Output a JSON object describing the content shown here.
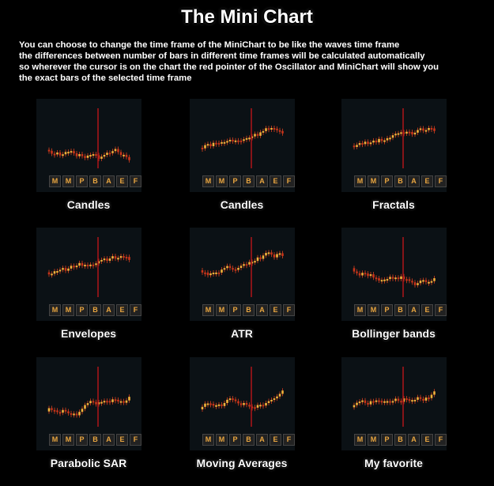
{
  "header": {
    "title": "The Mini Chart",
    "description": [
      "You can choose to change the time frame of the MiniChart to be like the waves time frame",
      "the differences between number of bars in different time frames will be calculated automatically",
      "so wherever the cursor is on the chart the red pointer of the Oscillator and MiniChart will show you",
      "the exact bars of the  selected time frame"
    ]
  },
  "buttons": [
    "M",
    "M",
    "P",
    "B",
    "A",
    "E",
    "F"
  ],
  "panels": [
    {
      "label": "Candles"
    },
    {
      "label": "Candles"
    },
    {
      "label": "Fractals"
    },
    {
      "label": "Envelopes"
    },
    {
      "label": "ATR"
    },
    {
      "label": "Bollinger bands"
    },
    {
      "label": "Parabolic SAR"
    },
    {
      "label": "Moving Averages"
    },
    {
      "label": "My favorite"
    }
  ]
}
